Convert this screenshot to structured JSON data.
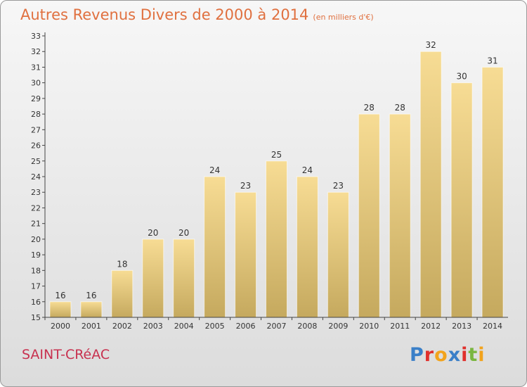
{
  "header": {
    "title": "Autres Revenus Divers de 2000 à 2014",
    "subtitle": "(en milliers d'€)"
  },
  "commune": "SAINT-CRéAC",
  "logo": {
    "text": "Proxiti",
    "letters": [
      {
        "char": "P",
        "color": "#3a7fc8"
      },
      {
        "char": "r",
        "color": "#e0302c"
      },
      {
        "char": "o",
        "color": "#f2a31c"
      },
      {
        "char": "x",
        "color": "#3a7fc8"
      },
      {
        "char": "i",
        "color": "#e0302c"
      },
      {
        "char": "t",
        "color": "#7ab640"
      },
      {
        "char": "i",
        "color": "#f2a31c"
      }
    ]
  },
  "chart_data": {
    "type": "bar",
    "categories": [
      "2000",
      "2001",
      "2002",
      "2003",
      "2004",
      "2005",
      "2006",
      "2007",
      "2008",
      "2009",
      "2010",
      "2011",
      "2012",
      "2013",
      "2014"
    ],
    "values": [
      16,
      16,
      18,
      20,
      20,
      24,
      23,
      25,
      24,
      23,
      28,
      28,
      32,
      30,
      31
    ],
    "title": "Autres Revenus Divers de 2000 à 2014",
    "xlabel": "",
    "ylabel": "",
    "ylim": [
      15,
      33
    ],
    "yticks": [
      15,
      16,
      17,
      18,
      19,
      20,
      21,
      22,
      23,
      24,
      25,
      26,
      27,
      28,
      29,
      30,
      31,
      32,
      33
    ],
    "grid": false,
    "data_labels": true,
    "colors": {
      "bar_top": "#f7dc94",
      "bar_bottom": "#c5a95e",
      "axis": "#444444",
      "text": "#333333"
    }
  }
}
